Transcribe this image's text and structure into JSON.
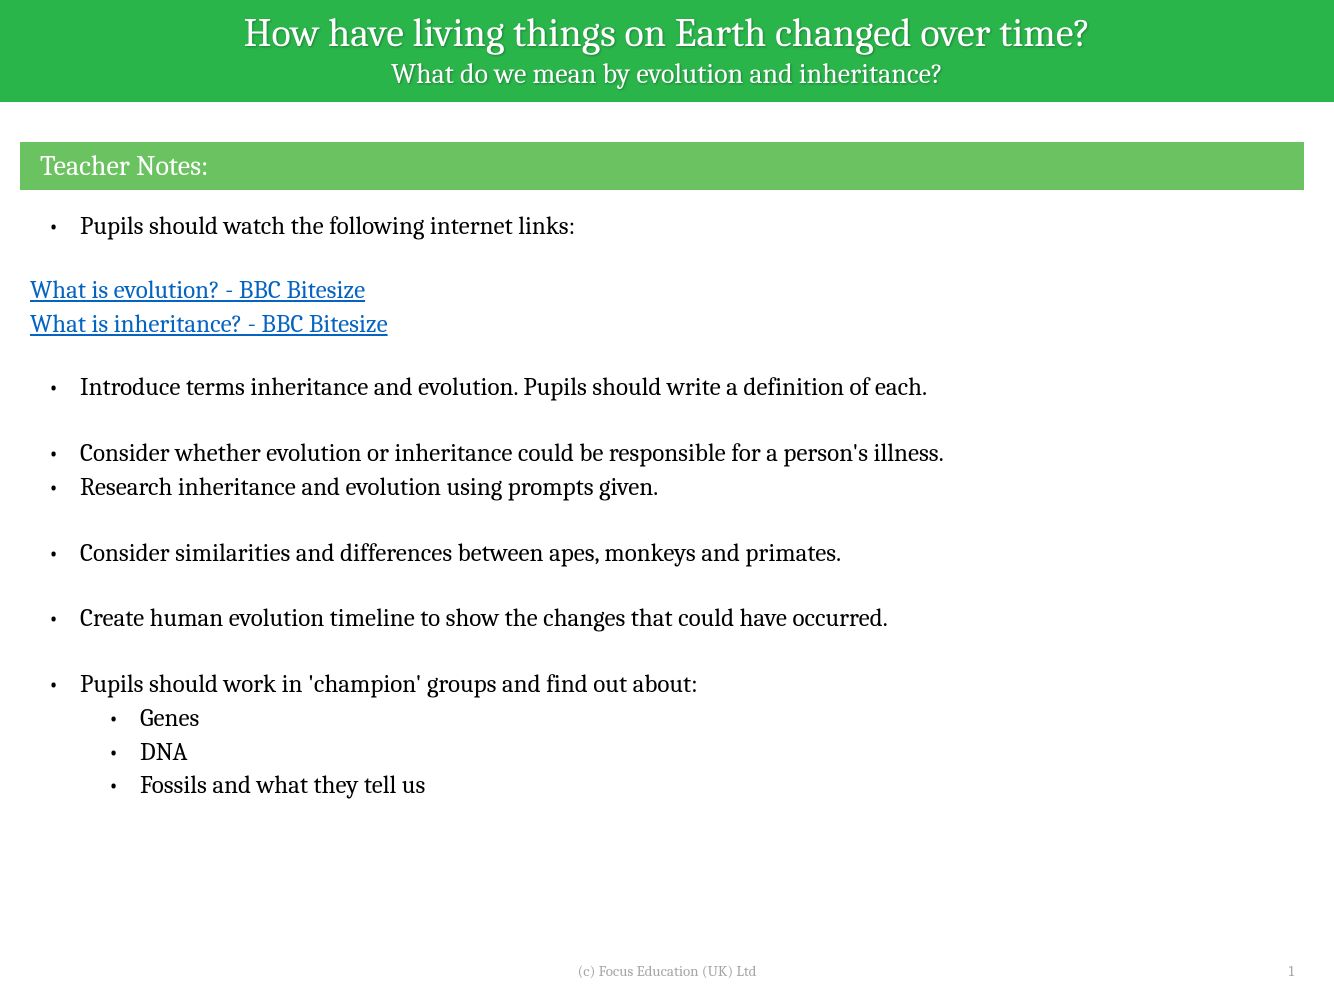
{
  "header": {
    "title": "How have living things on Earth changed over time?",
    "subtitle": "What do we mean by evolution and inheritance?",
    "background_color": "#2ab54b",
    "text_color": "#ffffff",
    "title_fontsize": 40,
    "subtitle_fontsize": 28
  },
  "section": {
    "label": "Teacher Notes:",
    "background_color": "#6ac260",
    "text_color": "#ffffff",
    "fontsize": 28
  },
  "content": {
    "fontsize": 25,
    "text_color": "#000000",
    "intro_bullet": "Pupils should watch the following internet links:",
    "links": [
      "What is evolution? - BBC Bitesize",
      "What is inheritance? - BBC Bitesize"
    ],
    "link_color": "#0563c1",
    "bullets": [
      "Introduce terms inheritance and evolution. Pupils should write a definition of each.",
      "Consider whether evolution or inheritance could be responsible for a person's illness.",
      "Research inheritance and evolution using prompts given.",
      "Consider similarities and differences between apes, monkeys and primates.",
      "Create human evolution timeline to show the changes that could have occurred.",
      "Pupils should work in 'champion' groups and find out about:"
    ],
    "nested_bullets": [
      "Genes",
      "DNA",
      "Fossils and what they tell us"
    ]
  },
  "footer": {
    "copyright": "(c) Focus Education (UK) Ltd",
    "page_number": "1",
    "text_color": "#a6a6a6",
    "fontsize": 15
  }
}
